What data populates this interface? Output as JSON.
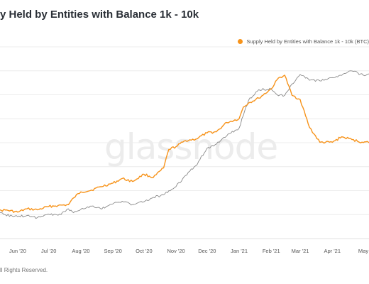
{
  "header": {
    "title": "y Held by Entities with Balance 1k - 10k"
  },
  "footer": {
    "text": "ll Rights Reserved."
  },
  "watermark": "glassnode",
  "colors": {
    "series_primary": "#f7931a",
    "series_secondary": "#8a8a8a",
    "grid": "#ececec",
    "watermark": "#ececec"
  },
  "chart_data": {
    "type": "line",
    "title": "y Held by Entities with Balance 1k - 10k",
    "xlabel": "",
    "ylabel": "",
    "x_tick_labels": [
      "Jun '20",
      "Jul '20",
      "Aug '20",
      "Sep '20",
      "Oct '20",
      "Nov '20",
      "Dec '20",
      "Jan '21",
      "Feb '21",
      "Mar '21",
      "Apr '21",
      "May"
    ],
    "grid": true,
    "legend_position": "top-right",
    "x": [
      "2020-05-10",
      "2020-05-20",
      "2020-06-01",
      "2020-06-10",
      "2020-06-20",
      "2020-07-01",
      "2020-07-10",
      "2020-07-20",
      "2020-07-25",
      "2020-08-01",
      "2020-08-10",
      "2020-08-20",
      "2020-09-01",
      "2020-09-10",
      "2020-09-20",
      "2020-10-01",
      "2020-10-10",
      "2020-10-20",
      "2020-10-25",
      "2020-11-01",
      "2020-11-10",
      "2020-11-20",
      "2020-12-01",
      "2020-12-10",
      "2020-12-20",
      "2021-01-01",
      "2021-01-05",
      "2021-01-10",
      "2021-01-20",
      "2021-02-01",
      "2021-02-08",
      "2021-02-14",
      "2021-02-21",
      "2021-03-01",
      "2021-03-10",
      "2021-03-20",
      "2021-04-01",
      "2021-04-10",
      "2021-04-20",
      "2021-05-01",
      "2021-05-10"
    ],
    "series": [
      {
        "name": "Supply Held by Entities with Balance 1k - 10k (BTC)",
        "color": "#f7931a",
        "values": [
          2.0,
          2.6,
          1.5,
          3.2,
          2.7,
          4.4,
          4.9,
          5.3,
          8.8,
          11.9,
          12.5,
          14.5,
          16.3,
          18.7,
          17.2,
          20.9,
          19.2,
          24.1,
          33.6,
          35.0,
          38.1,
          38.8,
          42.0,
          42.6,
          47.3,
          49.3,
          55.2,
          57.3,
          59.8,
          64.5,
          70.1,
          71.5,
          61.3,
          59.0,
          44.8,
          37.2,
          37.2,
          40.0,
          38.6,
          37.1,
          37.5
        ]
      },
      {
        "name": "",
        "color": "#8a8a8a",
        "values": [
          1.4,
          0.2,
          -0.8,
          -0.2,
          -1.3,
          0.5,
          -0.1,
          3.2,
          1.2,
          2.9,
          4.6,
          3.3,
          5.7,
          7.1,
          5.4,
          6.8,
          9.1,
          10.4,
          12.5,
          14.6,
          20.2,
          25.2,
          34.2,
          36.3,
          40.5,
          44.5,
          50.9,
          58.6,
          64.1,
          64.4,
          61.0,
          61.2,
          67.0,
          71.9,
          68.9,
          68.6,
          70.3,
          71.4,
          73.7,
          71.5,
          72.0
        ]
      }
    ],
    "ylim": [
      -12,
      86
    ]
  }
}
